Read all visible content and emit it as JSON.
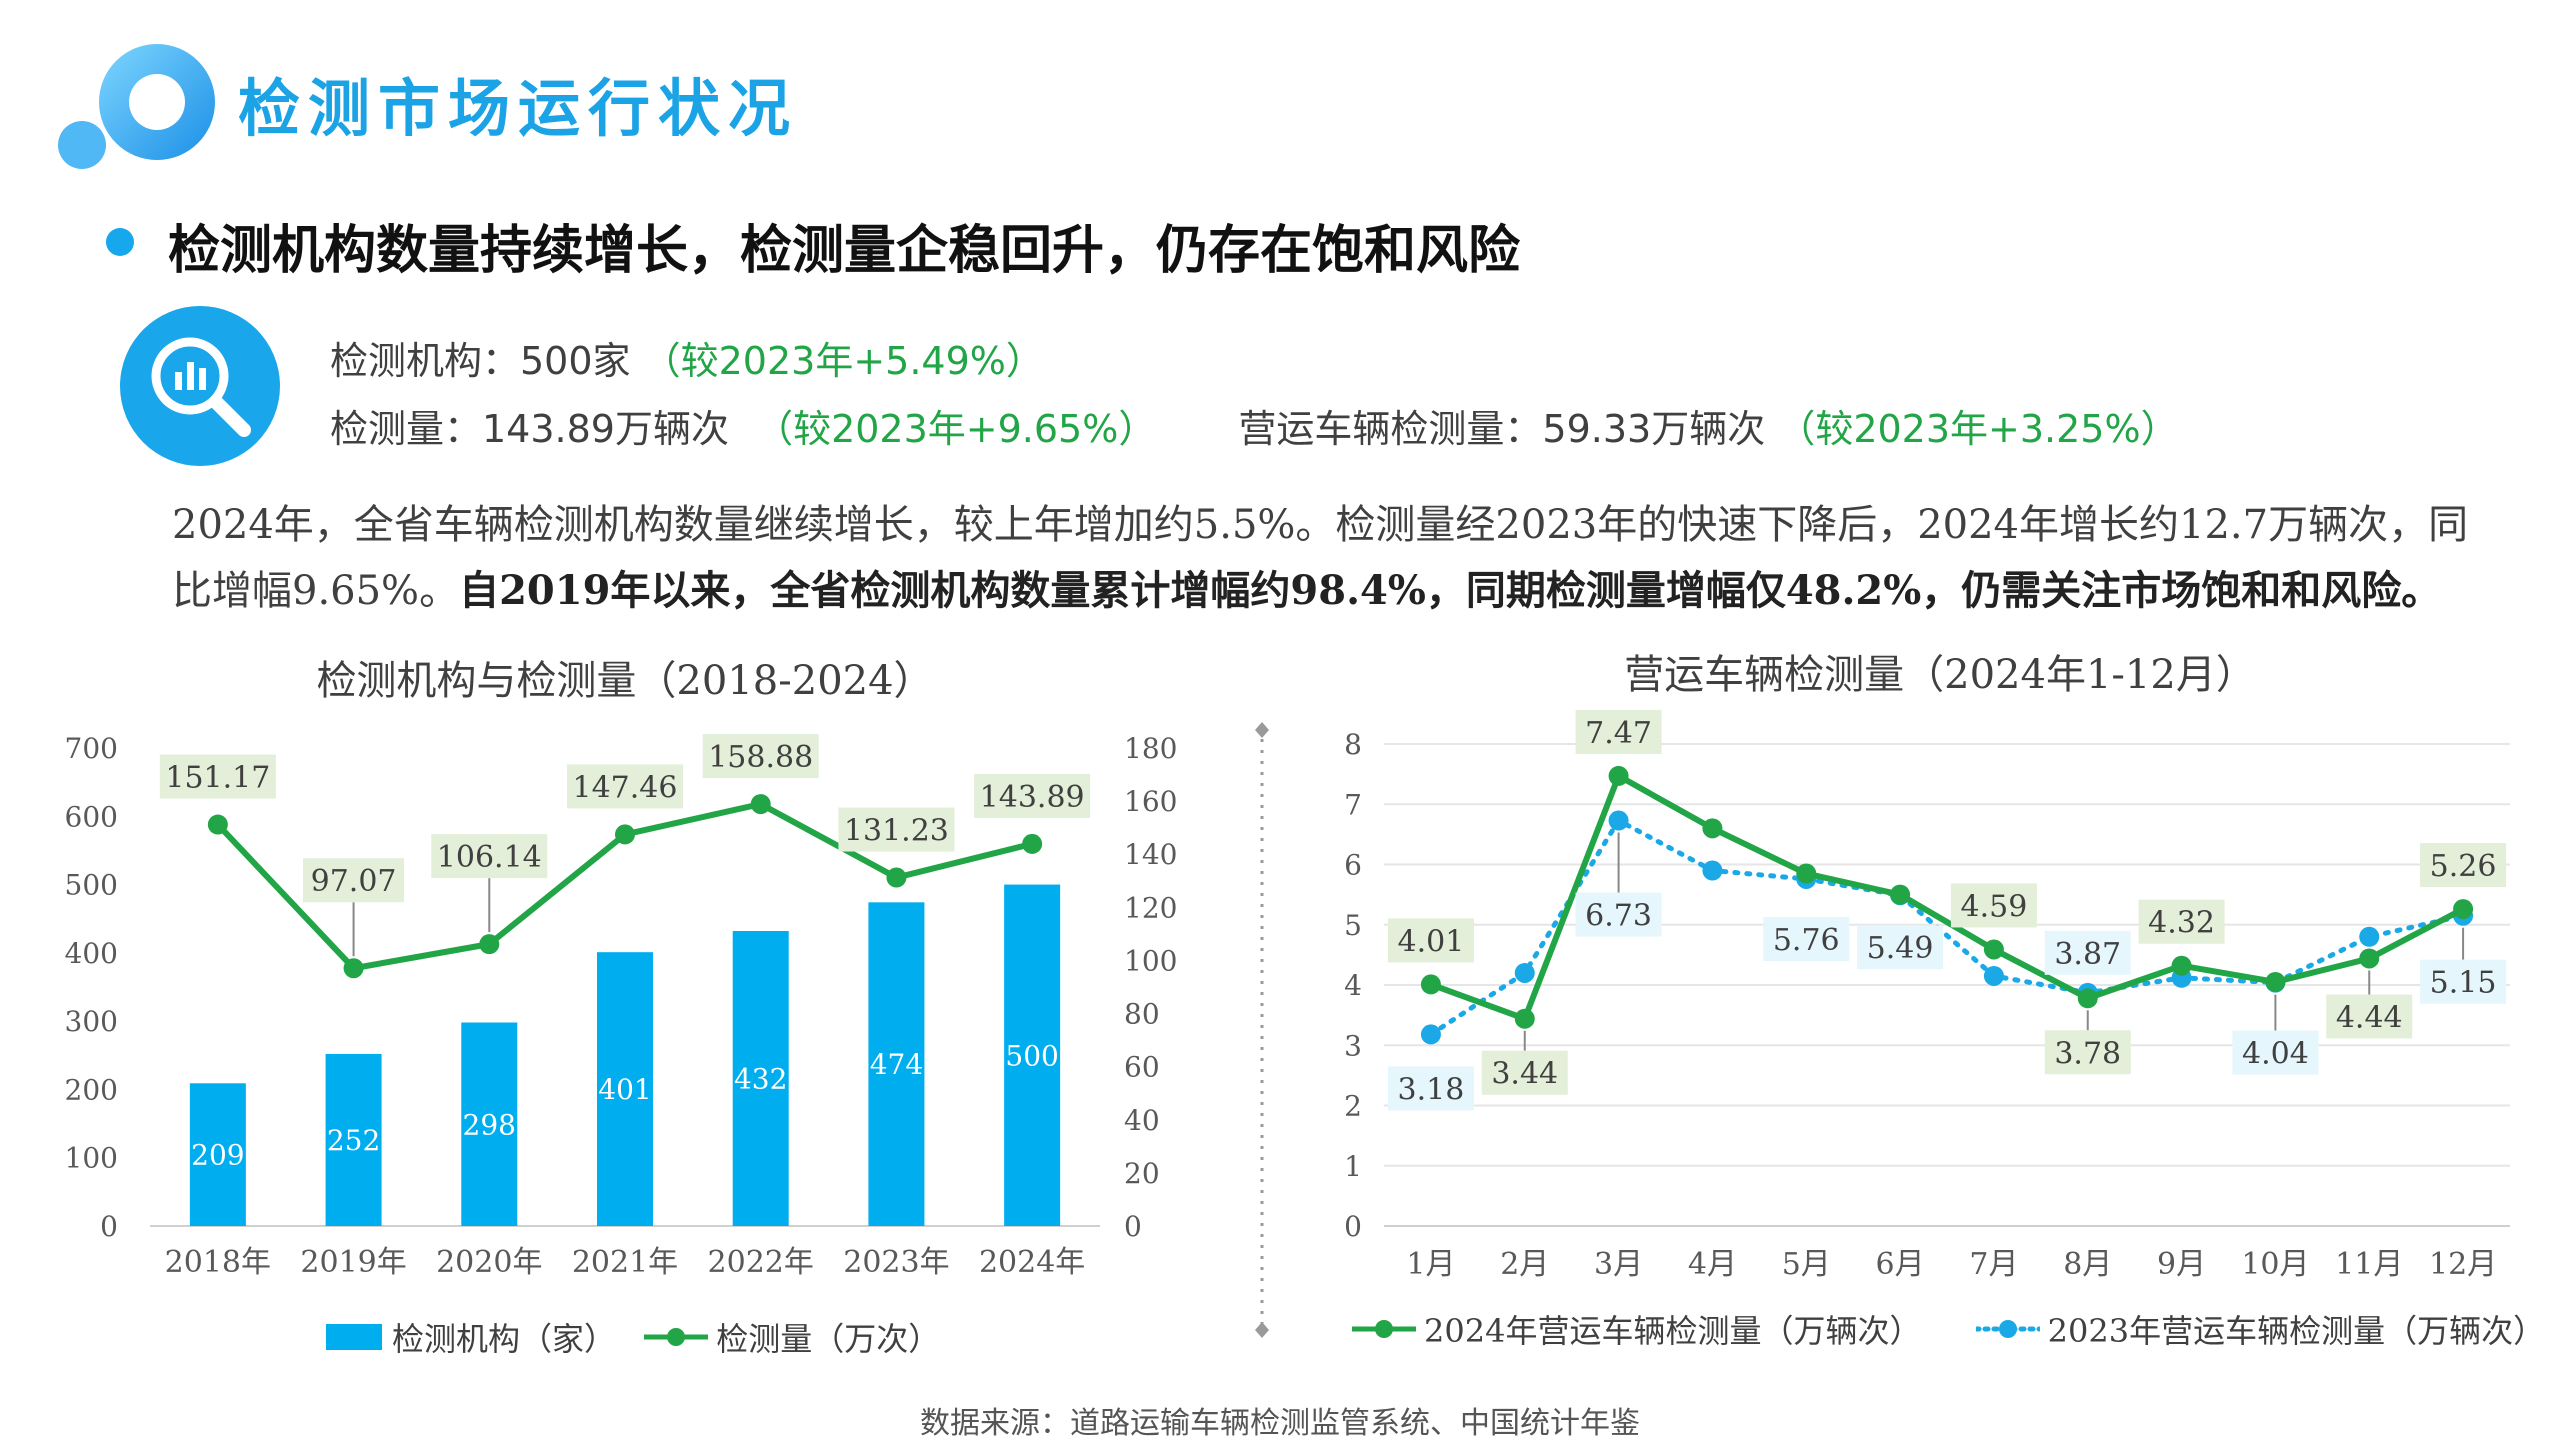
{
  "header": {
    "title": "检测市场运行状况"
  },
  "subtitle": "检测机构数量持续增长，检测量企稳回升，仍存在饱和风险",
  "kpis": {
    "row1_label": "检测机构：500家",
    "row1_change": "（较2023年+5.49%）",
    "row2_label": "检测量：143.89万辆次",
    "row2_change": "（较2023年+9.65%）",
    "row2b_label": "营运车辆检测量：59.33万辆次",
    "row2b_change": "（较2023年+3.25%）"
  },
  "paragraph": {
    "part1": "2024年，全省车辆检测机构数量继续增长，较上年增加约5.5%。检测量经2023年的快速下降后，2024年增长约12.7万辆次，同比增幅9.65%。",
    "part2": "自2019年以来，全省检测机构数量累计增幅约98.4%，同期检测量增幅仅48.2%，仍需关注市场饱和和风险。"
  },
  "source": "数据来源：道路运输车辆检测监管系统、中国统计年鉴",
  "colors": {
    "accent": "#1ba3e6",
    "bar": "#00aeef",
    "green": "#22a547",
    "blue": "#1aa9e6"
  },
  "chart_data": [
    {
      "type": "bar",
      "title": "检测机构与检测量（2018-2024）",
      "categories": [
        "2018年",
        "2019年",
        "2020年",
        "2021年",
        "2022年",
        "2023年",
        "2024年"
      ],
      "ylim": [
        0,
        700
      ],
      "y_ticks": [
        0,
        100,
        200,
        300,
        400,
        500,
        600,
        700
      ],
      "y2lim": [
        0,
        180
      ],
      "y2_ticks": [
        0,
        20,
        40,
        60,
        80,
        100,
        120,
        140,
        160,
        180
      ],
      "series": [
        {
          "name": "检测机构（家）",
          "type": "bar",
          "axis": "left",
          "values": [
            209,
            252,
            298,
            401,
            432,
            474,
            500
          ],
          "labels": [
            "209",
            "252",
            "298",
            "401",
            "432",
            "474",
            "500"
          ]
        },
        {
          "name": "检测量（万次）",
          "type": "line",
          "axis": "right",
          "values": [
            151.17,
            97.07,
            106.14,
            147.46,
            158.88,
            131.23,
            143.89
          ],
          "labels": [
            "151.17",
            "97.07",
            "106.14",
            "147.46",
            "158.88",
            "131.23",
            "143.89"
          ]
        }
      ],
      "legend": "bottom"
    },
    {
      "type": "line",
      "title": "营运车辆检测量（2024年1-12月）",
      "categories": [
        "1月",
        "2月",
        "3月",
        "4月",
        "5月",
        "6月",
        "7月",
        "8月",
        "9月",
        "10月",
        "11月",
        "12月"
      ],
      "ylim": [
        0,
        8
      ],
      "y_ticks": [
        0,
        1,
        2,
        3,
        4,
        5,
        6,
        7,
        8
      ],
      "grid": true,
      "series": [
        {
          "name": "2024年营运车辆检测量（万辆次）",
          "style": "solid",
          "values": [
            4.01,
            3.44,
            7.47,
            6.6,
            5.85,
            5.5,
            4.59,
            3.78,
            4.32,
            4.05,
            4.44,
            5.26
          ],
          "labels": [
            "4.01",
            "3.44",
            "7.47",
            "",
            "",
            "",
            "4.59",
            "3.78",
            "4.32",
            "",
            "4.44",
            "5.26"
          ]
        },
        {
          "name": "2023年营运车辆检测量（万辆次）",
          "style": "dotted",
          "values": [
            3.18,
            4.2,
            6.73,
            5.9,
            5.76,
            5.49,
            4.15,
            3.87,
            4.12,
            4.04,
            4.8,
            5.15
          ],
          "labels": [
            "3.18",
            "",
            "6.73",
            "",
            "5.76",
            "5.49",
            "",
            "3.87",
            "",
            "4.04",
            "",
            "5.15"
          ]
        }
      ],
      "legend": "bottom"
    }
  ]
}
